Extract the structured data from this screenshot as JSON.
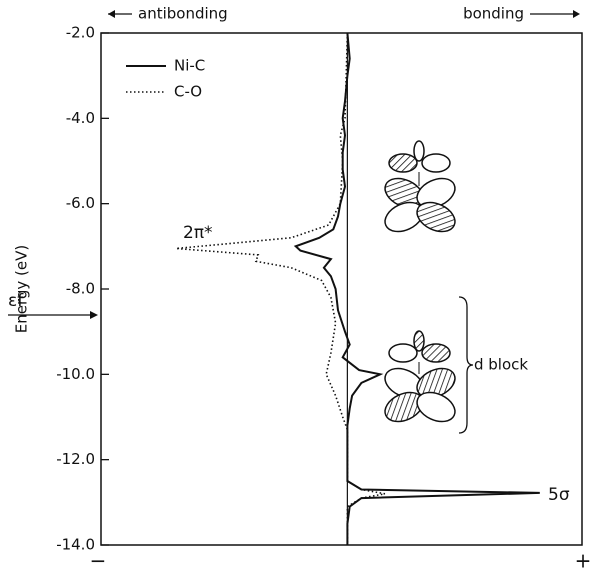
{
  "chart_data": {
    "type": "line",
    "ylabel": "Energy (eV)",
    "ylim": [
      -14,
      -2
    ],
    "yticks": [
      {
        "value": -2,
        "label": "-2.0"
      },
      {
        "value": -4,
        "label": "-4.0"
      },
      {
        "value": -6,
        "label": "-6.0"
      },
      {
        "value": -8,
        "label": "-8.0"
      },
      {
        "value": -10,
        "label": "-10.0"
      },
      {
        "value": -12,
        "label": "-12.0"
      },
      {
        "value": -14,
        "label": "-14.0"
      }
    ],
    "xlim": [
      -1.05,
      1.0
    ],
    "x_left_label": "antibonding",
    "x_right_label": "bonding",
    "x_min_label": "−",
    "x_max_label": "+",
    "annotations": {
      "pi_star": "2π*",
      "fermi": "εf",
      "d_block": "d block",
      "sigma": "5σ"
    },
    "legend": "upper left",
    "series": [
      {
        "name": "Ni-C",
        "color": "#111111",
        "style": "solid",
        "energy": [
          -2,
          -2.6,
          -3,
          -3.6,
          -4,
          -4.4,
          -4.8,
          -5.2,
          -5.6,
          -6,
          -6.3,
          -6.6,
          -6.8,
          -7,
          -7.1,
          -7.3,
          -7.5,
          -7.7,
          -8,
          -8.5,
          -9,
          -9.3,
          -9.6,
          -9.9,
          -10,
          -10.2,
          -10.5,
          -10.8,
          -11.2,
          -12.5,
          -12.7,
          -12.78,
          -12.9,
          -13.1,
          -13.5,
          -14
        ],
        "values": [
          0,
          0.01,
          0,
          -0.01,
          -0.02,
          -0.01,
          -0.02,
          -0.02,
          -0.01,
          -0.03,
          -0.04,
          -0.06,
          -0.12,
          -0.22,
          -0.2,
          -0.07,
          -0.1,
          -0.07,
          -0.05,
          -0.04,
          -0.01,
          0.01,
          -0.02,
          0.05,
          0.14,
          0.06,
          0.02,
          0.01,
          0,
          0,
          0.06,
          0.82,
          0.06,
          0.01,
          0,
          0
        ]
      },
      {
        "name": "C-O",
        "color": "#111111",
        "style": "dotted",
        "energy": [
          -2,
          -4,
          -4.4,
          -5,
          -6,
          -6.5,
          -6.8,
          -7.05,
          -7.2,
          -7.35,
          -7.5,
          -7.8,
          -8.2,
          -8.8,
          -9.5,
          -10,
          -10.5,
          -11,
          -11.3,
          -12.5,
          -12.7,
          -12.8,
          -12.9,
          -13.1,
          -14
        ],
        "values": [
          0,
          -0.01,
          -0.03,
          -0.02,
          -0.03,
          -0.08,
          -0.24,
          -0.73,
          -0.38,
          -0.39,
          -0.24,
          -0.11,
          -0.07,
          -0.05,
          -0.07,
          -0.09,
          -0.05,
          -0.02,
          0,
          0,
          0.06,
          0.16,
          0.06,
          0,
          0
        ]
      }
    ]
  }
}
